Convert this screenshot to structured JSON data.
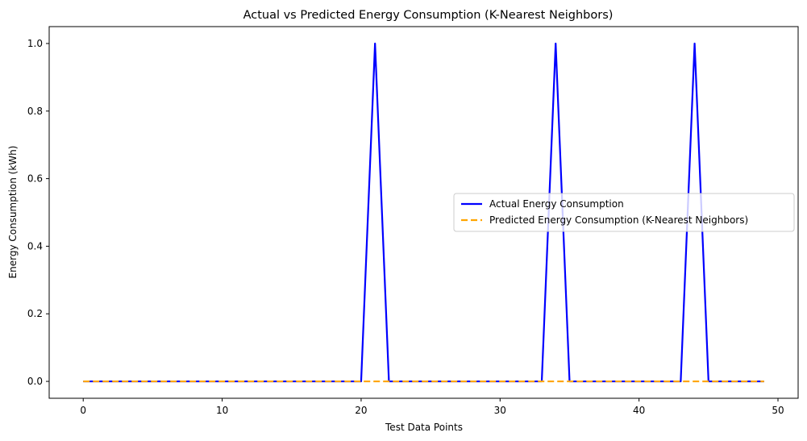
{
  "chart_data": {
    "type": "line",
    "title": "Actual vs Predicted Energy Consumption (K-Nearest Neighbors)",
    "xlabel": "Test Data Points",
    "ylabel": "Energy Consumption (kWh)",
    "xlim": [
      -2.45,
      51.45
    ],
    "ylim": [
      -0.05,
      1.05
    ],
    "xticks": [
      0,
      10,
      20,
      30,
      40,
      50
    ],
    "yticks": [
      0.0,
      0.2,
      0.4,
      0.6,
      0.8,
      1.0
    ],
    "xtick_labels": [
      "0",
      "10",
      "20",
      "30",
      "40",
      "50"
    ],
    "ytick_labels": [
      "0.0",
      "0.2",
      "0.4",
      "0.6",
      "0.8",
      "1.0"
    ],
    "grid": false,
    "legend_position": "center-right",
    "x": [
      0,
      1,
      2,
      3,
      4,
      5,
      6,
      7,
      8,
      9,
      10,
      11,
      12,
      13,
      14,
      15,
      16,
      17,
      18,
      19,
      20,
      21,
      22,
      23,
      24,
      25,
      26,
      27,
      28,
      29,
      30,
      31,
      32,
      33,
      34,
      35,
      36,
      37,
      38,
      39,
      40,
      41,
      42,
      43,
      44,
      45,
      46,
      47,
      48,
      49
    ],
    "series": [
      {
        "name": "Actual Energy Consumption",
        "color": "#0000ff",
        "style": "solid",
        "values": [
          0,
          0,
          0,
          0,
          0,
          0,
          0,
          0,
          0,
          0,
          0,
          0,
          0,
          0,
          0,
          0,
          0,
          0,
          0,
          0,
          0,
          1,
          0,
          0,
          0,
          0,
          0,
          0,
          0,
          0,
          0,
          0,
          0,
          0,
          1,
          0,
          0,
          0,
          0,
          0,
          0,
          0,
          0,
          0,
          1,
          0,
          0,
          0,
          0,
          0
        ]
      },
      {
        "name": "Predicted Energy Consumption (K-Nearest Neighbors)",
        "color": "#ffa500",
        "style": "dashed",
        "values": [
          0,
          0,
          0,
          0,
          0,
          0,
          0,
          0,
          0,
          0,
          0,
          0,
          0,
          0,
          0,
          0,
          0,
          0,
          0,
          0,
          0,
          0,
          0,
          0,
          0,
          0,
          0,
          0,
          0,
          0,
          0,
          0,
          0,
          0,
          0,
          0,
          0,
          0,
          0,
          0,
          0,
          0,
          0,
          0,
          0,
          0,
          0,
          0,
          0,
          0
        ]
      }
    ]
  }
}
